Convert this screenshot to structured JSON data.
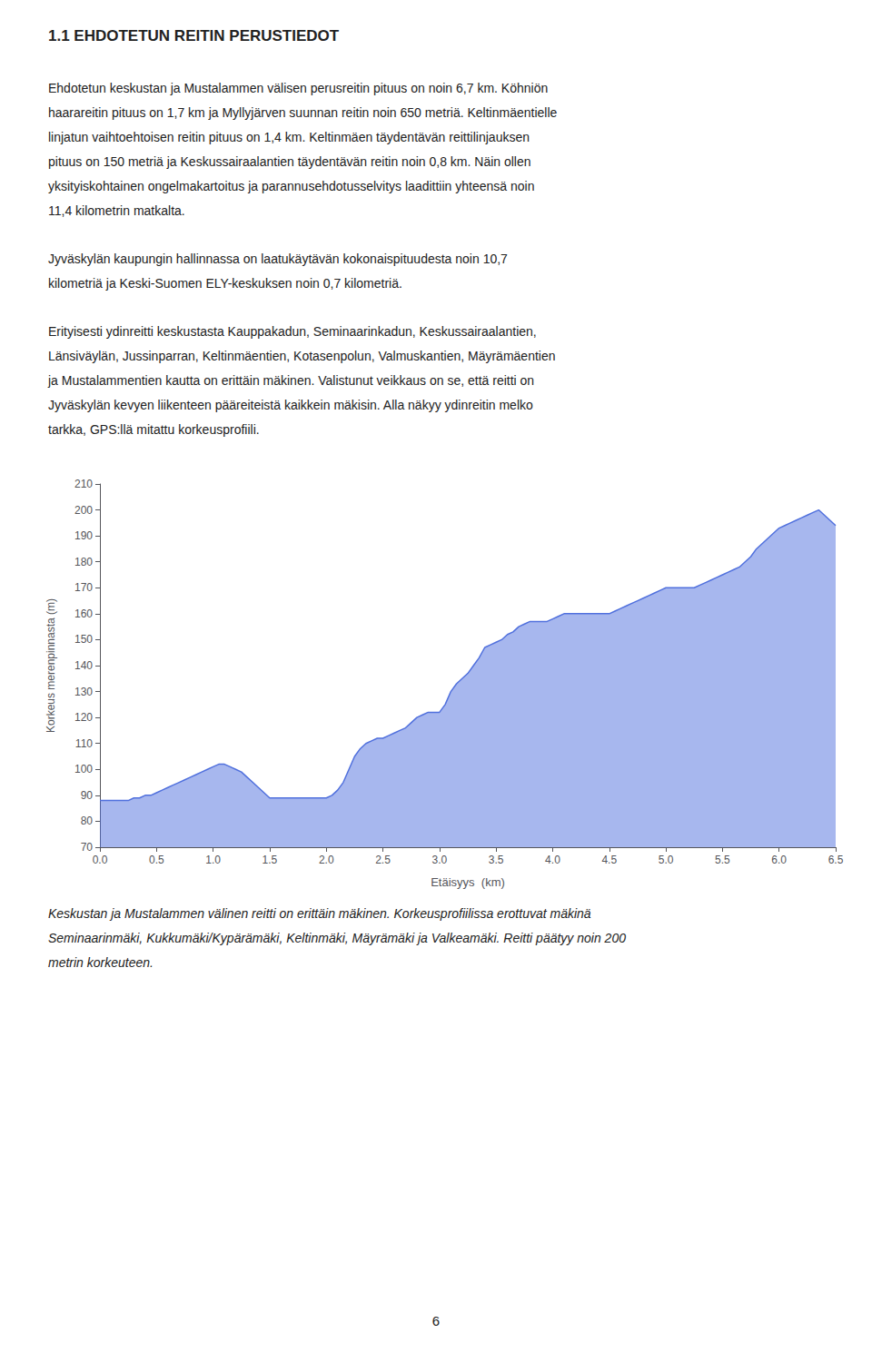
{
  "page": {
    "title": "1.1 EHDOTETUN REITIN PERUSTIEDOT",
    "paragraphs": [
      [
        "Ehdotetun keskustan ja Mustalammen välisen perusreitin pituus on noin 6,7 km. Köhniön",
        "haarareitin pituus on 1,7 km ja Myllyjärven suunnan reitin noin 650 metriä. Keltinmäentielle",
        "linjatun vaihtoehtoisen reitin pituus on 1,4 km. Keltinmäen täydentävän reittilinjauksen",
        "pituus on 150 metriä ja Keskussairaalantien täydentävän reitin noin 0,8 km. Näin ollen",
        "yksityiskohtainen ongelmakartoitus ja parannusehdotusselvitys laadittiin yhteensä noin",
        "11,4 kilometrin matkalta."
      ],
      [
        "Jyväskylän kaupungin hallinnassa on laatukäytävän kokonaispituudesta noin 10,7",
        "kilometriä ja Keski-Suomen ELY-keskuksen noin 0,7 kilometriä."
      ],
      [
        "Erityisesti ydinreitti keskustasta Kauppakadun, Seminaarinkadun, Keskussairaalantien,",
        "Länsiväylän, Jussinparran, Keltinmäentien, Kotasenpolun, Valmuskantien, Mäyrämäentien",
        "ja Mustalammentien kautta on erittäin mäkinen. Valistunut veikkaus on se, että reitti on",
        "Jyväskylän kevyen liikenteen pääreiteistä kaikkein mäkisin. Alla näkyy ydinreitin melko",
        "tarkka, GPS:llä mitattu korkeusprofiili."
      ]
    ],
    "caption": [
      "Keskustan ja Mustalammen välinen reitti on erittäin mäkinen. Korkeusprofiilissa erottuvat mäkinä",
      "Seminaarinmäki, Kukkumäki/Kypärämäki, Keltinmäki, Mäyrämäki ja Valkeamäki. Reitti päätyy noin 200",
      "metrin korkeuteen."
    ],
    "page_number": "6"
  },
  "chart_data": {
    "type": "area",
    "xlabel": "Etäisyys  (km)",
    "ylabel": "Korkeus merenpinnasta (m)",
    "x": [
      0.0,
      0.05,
      0.1,
      0.15,
      0.2,
      0.25,
      0.3,
      0.35,
      0.4,
      0.45,
      0.5,
      0.55,
      0.6,
      0.65,
      0.7,
      0.75,
      0.8,
      0.85,
      0.9,
      0.95,
      1.0,
      1.05,
      1.1,
      1.15,
      1.2,
      1.25,
      1.3,
      1.35,
      1.4,
      1.45,
      1.5,
      1.55,
      1.6,
      1.65,
      1.7,
      1.75,
      1.8,
      1.85,
      1.9,
      1.95,
      2.0,
      2.05,
      2.1,
      2.15,
      2.2,
      2.25,
      2.3,
      2.35,
      2.4,
      2.45,
      2.5,
      2.55,
      2.6,
      2.65,
      2.7,
      2.75,
      2.8,
      2.85,
      2.9,
      2.95,
      3.0,
      3.05,
      3.1,
      3.15,
      3.2,
      3.25,
      3.3,
      3.35,
      3.4,
      3.45,
      3.5,
      3.55,
      3.6,
      3.65,
      3.7,
      3.75,
      3.8,
      3.85,
      3.9,
      3.95,
      4.0,
      4.05,
      4.1,
      4.15,
      4.2,
      4.25,
      4.3,
      4.35,
      4.4,
      4.45,
      4.5,
      4.55,
      4.6,
      4.65,
      4.7,
      4.75,
      4.8,
      4.85,
      4.9,
      4.95,
      5.0,
      5.05,
      5.1,
      5.15,
      5.2,
      5.25,
      5.3,
      5.35,
      5.4,
      5.45,
      5.5,
      5.55,
      5.6,
      5.65,
      5.7,
      5.75,
      5.8,
      5.85,
      5.9,
      5.95,
      6.0,
      6.05,
      6.1,
      6.15,
      6.2,
      6.25,
      6.3,
      6.35,
      6.4,
      6.45,
      6.5
    ],
    "values": [
      88,
      88,
      88,
      88,
      88,
      88,
      89,
      89,
      90,
      90,
      91,
      92,
      93,
      94,
      95,
      96,
      97,
      98,
      99,
      100,
      101,
      102,
      102,
      101,
      100,
      99,
      97,
      95,
      93,
      91,
      89,
      89,
      89,
      89,
      89,
      89,
      89,
      89,
      89,
      89,
      89,
      90,
      92,
      95,
      100,
      105,
      108,
      110,
      111,
      112,
      112,
      113,
      114,
      115,
      116,
      118,
      120,
      121,
      122,
      122,
      122,
      125,
      130,
      133,
      135,
      137,
      140,
      143,
      147,
      148,
      149,
      150,
      152,
      153,
      155,
      156,
      157,
      157,
      157,
      157,
      158,
      159,
      160,
      160,
      160,
      160,
      160,
      160,
      160,
      160,
      160,
      161,
      162,
      163,
      164,
      165,
      166,
      167,
      168,
      169,
      170,
      170,
      170,
      170,
      170,
      170,
      171,
      172,
      173,
      174,
      175,
      176,
      177,
      178,
      180,
      182,
      185,
      187,
      189,
      191,
      193,
      194,
      195,
      196,
      197,
      198,
      199,
      200,
      198,
      196,
      194
    ],
    "xlim": [
      0.0,
      6.5
    ],
    "ylim": [
      70,
      210
    ],
    "xticks": [
      {
        "value": 0.0,
        "label": "0.0"
      },
      0.5,
      {
        "value": 1.0,
        "label": "1.0"
      },
      1.5,
      {
        "value": 2.0,
        "label": "2.0"
      },
      2.5,
      {
        "value": 3.0,
        "label": "3.0"
      },
      3.5,
      {
        "value": 4.0,
        "label": "4.0"
      },
      4.5,
      {
        "value": 5.0,
        "label": "5.0"
      },
      5.5,
      {
        "value": 6.0,
        "label": "6.0"
      },
      6.5
    ],
    "yticks": [
      70,
      80,
      90,
      100,
      110,
      120,
      130,
      140,
      150,
      160,
      170,
      180,
      190,
      200,
      210
    ],
    "grid": false
  }
}
